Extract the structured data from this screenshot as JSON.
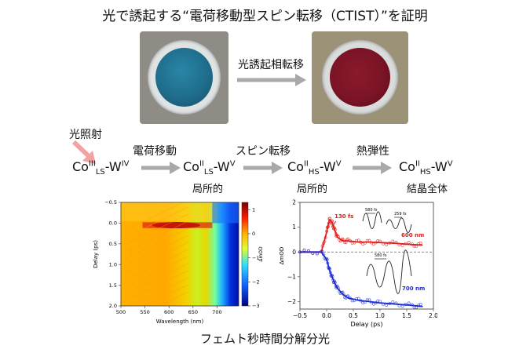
{
  "title": "光で誘起する“電荷移動型スピン転移（CTIST）”を証明",
  "photo_arrow_label": "光誘起相転移",
  "light_label": "光照射",
  "steps": [
    {
      "arrow_label": "電荷移動"
    },
    {
      "arrow_label": "スピン転移"
    },
    {
      "arrow_label": "熱弾性"
    }
  ],
  "states": [
    {
      "base1": "Co",
      "sup1": "III",
      "sub1": "LS",
      "mid": "-W",
      "sup2": "IV",
      "note": ""
    },
    {
      "base1": "Co",
      "sup1": "II",
      "sub1": "LS",
      "mid": "-W",
      "sup2": "V",
      "note": "局所的"
    },
    {
      "base1": "Co",
      "sup1": "II",
      "sub1": "HS",
      "mid": "-W",
      "sup2": "V",
      "note": "局所的"
    },
    {
      "base1": "Co",
      "sup1": "II",
      "sub1": "HS",
      "mid": "-W",
      "sup2": "V",
      "note": "結晶全体"
    }
  ],
  "caption": "フェムト秒時間分解分光",
  "colors": {
    "arrow": "#a9a9a9",
    "light_arrow": "#f4a3a3",
    "blue_sample": "#1f6d8c",
    "red_sample": "#7a1426"
  },
  "heatmap": {
    "type": "heatmap",
    "xlabel": "Wavelength (nm)",
    "ylabel": "Delay (ps)",
    "colorbar_label": "ΔmOD",
    "xticks": [
      "500",
      "550",
      "600",
      "650",
      "700"
    ],
    "yticks": [
      "−0.5",
      "0.0",
      "0.5",
      "1.0",
      "1.5",
      "2.0"
    ],
    "cticks": [
      "1",
      "0",
      "−1",
      "−2",
      "−3"
    ],
    "xlim": [
      500,
      745
    ],
    "ylim": [
      -0.5,
      2.0
    ],
    "clim": [
      -3,
      1.3
    ]
  },
  "kinetics": {
    "type": "line",
    "xlabel": "Delay (ps)",
    "ylabel": "ΔmOD",
    "xticks": [
      "−0.5",
      "0.0",
      "0.5",
      "1.0",
      "1.5",
      "2.0"
    ],
    "yticks": [
      "2",
      "1",
      "0",
      "−1",
      "−2"
    ],
    "xlim": [
      -0.5,
      2.0
    ],
    "ylim": [
      -2.3,
      2.0
    ],
    "annotations": {
      "rise": "130 fs",
      "osc1": "580 fs",
      "osc2": "259 fs",
      "osc3": "580 fs"
    },
    "series": [
      {
        "name": "600 nm",
        "color": "#e0201b"
      },
      {
        "name": "700 nm",
        "color": "#1b2bd6"
      }
    ]
  },
  "chart_data": [
    {
      "type": "heatmap",
      "xlabel": "Wavelength (nm)",
      "ylabel": "Delay (ps)",
      "colorbar_label": "ΔmOD",
      "xlim": [
        500,
        745
      ],
      "ylim": [
        -0.5,
        2.0
      ],
      "clim": [
        -3,
        1.3
      ]
    },
    {
      "type": "line",
      "xlabel": "Delay (ps)",
      "ylabel": "ΔmOD",
      "xlim": [
        -0.5,
        2.0
      ],
      "ylim": [
        -2.3,
        2.0
      ],
      "series": [
        {
          "name": "600 nm",
          "x": [
            -0.5,
            -0.1,
            0.0,
            0.05,
            0.1,
            0.15,
            0.2,
            0.3,
            0.4,
            0.6,
            0.8,
            1.0,
            1.3,
            1.6,
            1.8
          ],
          "y": [
            0.0,
            0.0,
            0.8,
            1.3,
            1.2,
            0.9,
            0.6,
            0.45,
            0.45,
            0.4,
            0.4,
            0.38,
            0.35,
            0.3,
            0.28
          ]
        },
        {
          "name": "700 nm",
          "x": [
            -0.5,
            -0.1,
            0.0,
            0.05,
            0.1,
            0.15,
            0.2,
            0.3,
            0.4,
            0.6,
            0.8,
            1.0,
            1.3,
            1.6,
            1.8
          ],
          "y": [
            0.0,
            0.0,
            -0.3,
            -0.7,
            -1.0,
            -1.25,
            -1.45,
            -1.7,
            -1.85,
            -1.95,
            -2.0,
            -2.05,
            -2.1,
            -2.15,
            -2.2
          ]
        }
      ]
    }
  ]
}
